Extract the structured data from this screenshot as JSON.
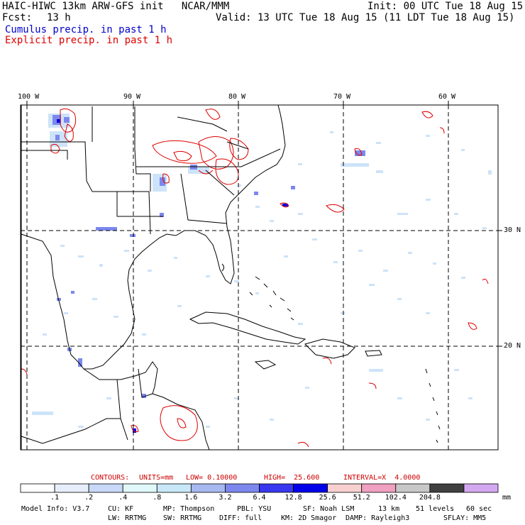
{
  "header": {
    "title": "HAIC-HIWC 13km ARW-GFS init   NCAR/MMM",
    "init": "Init: 00 UTC Tue 18 Aug 15",
    "fcst_label": "Fcst:",
    "fcst_value": "13 h",
    "valid": "Valid: 13 UTC Tue 18 Aug 15 (11 LDT Tue 18 Aug 15)",
    "cumulus": "Cumulus precip. in past 1 h",
    "explicit": "Explicit precip. in past 1 h"
  },
  "colors": {
    "cumulus_text": "#0000cc",
    "explicit_text": "#dd0000",
    "contour": "#dd0000"
  },
  "axes": {
    "lon_labels": [
      "100 W",
      "90 W",
      "80 W",
      "70 W",
      "60 W"
    ],
    "lat_labels": [
      "30 N",
      "20 N"
    ]
  },
  "contours_line": {
    "label": "CONTOURS:",
    "units": "UNITS=mm",
    "low": "LOW= 0.10000",
    "high": "HIGH=  25.600",
    "interval": "INTERVAL=X  4.0000"
  },
  "colorbar": {
    "colors": [
      "#ffffff",
      "#e6eefb",
      "#c8d8f8",
      "#e0f8fa",
      "#c8e8f8",
      "#a8b8f0",
      "#7c88ee",
      "#3838f0",
      "#0000e8",
      "#f8d0d0",
      "#f0a0c0",
      "#c8c8c8",
      "#404040",
      "#d4a8f0"
    ],
    "labels": [
      ".1",
      ".2",
      ".4",
      ".8",
      "1.6",
      "3.2",
      "6.4",
      "12.8",
      "25.6",
      "51.2",
      "102.4",
      "204.8"
    ],
    "unit": "mm"
  },
  "model_info": {
    "line1": [
      "Model Info: V3.7",
      "CU: KF",
      "MP: Thompson",
      "PBL: YSU",
      "SF: Noah LSM",
      "13 km",
      "51 levels",
      "60 sec"
    ],
    "line2": [
      "LW: RRTMG",
      "SW: RRTMG",
      "DIFF: full",
      "KM: 2D Smagor",
      "DAMP: Rayleigh3",
      "SFLAY: MM5"
    ]
  }
}
